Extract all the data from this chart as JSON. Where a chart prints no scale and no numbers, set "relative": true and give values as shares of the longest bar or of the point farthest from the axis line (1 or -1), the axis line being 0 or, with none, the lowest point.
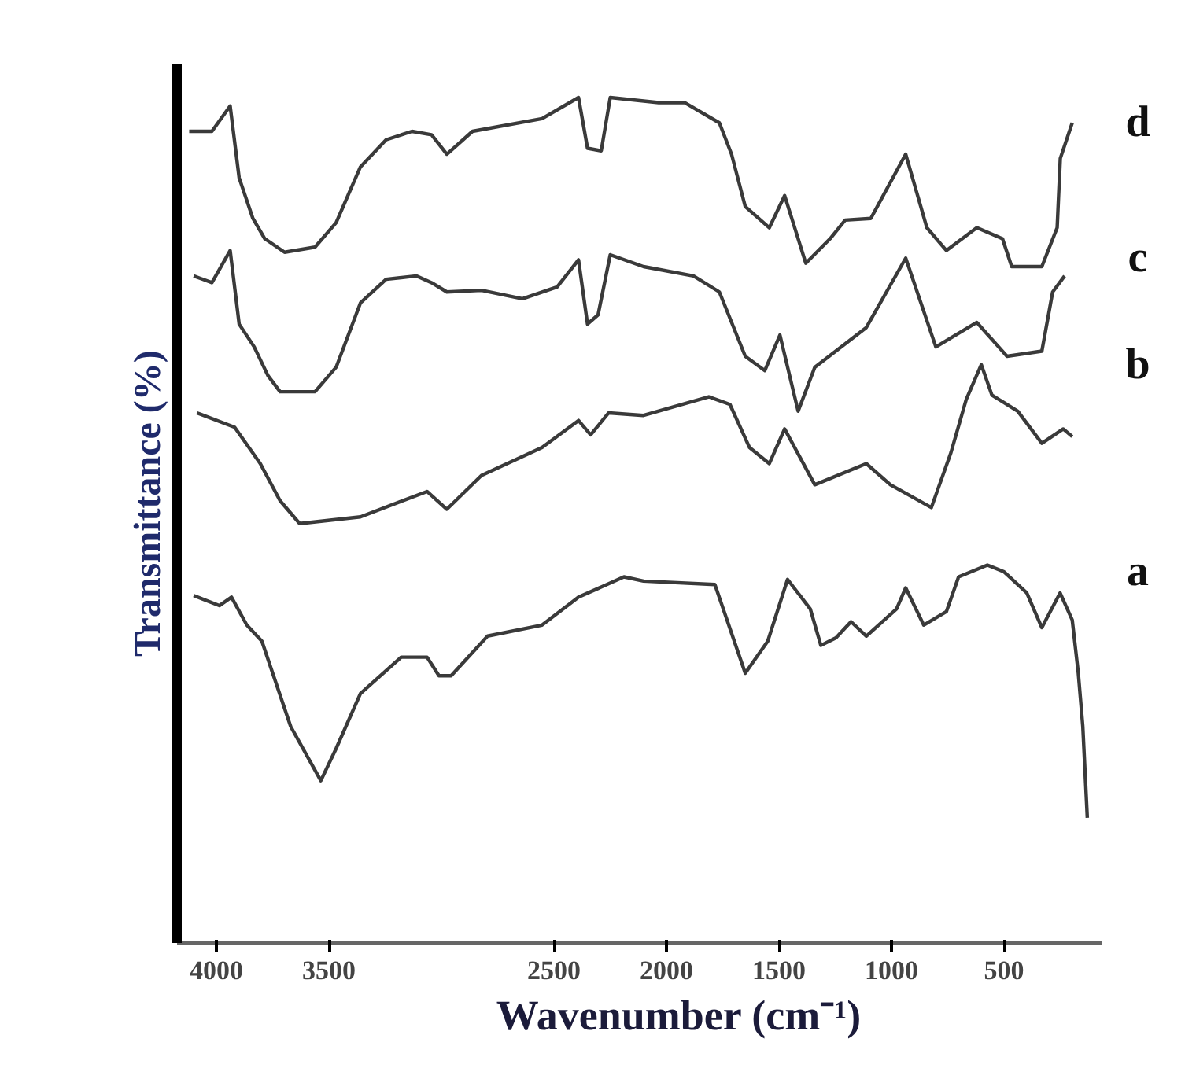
{
  "chart_data": {
    "type": "line",
    "relative": true,
    "xlabel": "Wavenumber (cm⁻¹)",
    "ylabel": "Transmittance (%)",
    "tick_labels": "x",
    "grid": false,
    "legend": false,
    "marker": "none",
    "line_style": "solid",
    "xlim": [
      4175,
      63
    ],
    "xticks": [
      4000,
      3500,
      2500,
      2000,
      1500,
      1000,
      500
    ],
    "series": [
      {
        "name": "a",
        "color": "#3a3a3a",
        "x": [
          4101,
          3987,
          3933,
          3865,
          3798,
          3670,
          3536,
          3468,
          3360,
          3179,
          3064,
          3011,
          2957,
          2795,
          2553,
          2391,
          2189,
          2102,
          1785,
          1650,
          1550,
          1462,
          1361,
          1314,
          1247,
          1180,
          1112,
          978,
          937,
          857,
          756,
          702,
          574,
          500,
          399,
          332,
          251,
          197,
          170,
          150,
          130
        ],
        "values": [
          0.411,
          0.399,
          0.409,
          0.376,
          0.357,
          0.256,
          0.192,
          0.23,
          0.295,
          0.338,
          0.338,
          0.316,
          0.316,
          0.363,
          0.376,
          0.409,
          0.433,
          0.428,
          0.424,
          0.319,
          0.357,
          0.43,
          0.395,
          0.352,
          0.361,
          0.38,
          0.363,
          0.395,
          0.42,
          0.376,
          0.392,
          0.433,
          0.447,
          0.439,
          0.414,
          0.373,
          0.414,
          0.382,
          0.319,
          0.256,
          0.148
        ]
      },
      {
        "name": "b",
        "color": "#3a3a3a",
        "x": [
          4087,
          3919,
          3805,
          3717,
          3630,
          3360,
          3064,
          2976,
          2822,
          2553,
          2391,
          2337,
          2257,
          2102,
          1812,
          1718,
          1631,
          1543,
          1475,
          1341,
          1112,
          1005,
          823,
          736,
          668,
          601,
          554,
          439,
          332,
          237,
          197
        ],
        "values": [
          0.627,
          0.61,
          0.567,
          0.523,
          0.496,
          0.504,
          0.534,
          0.513,
          0.553,
          0.586,
          0.618,
          0.601,
          0.627,
          0.624,
          0.646,
          0.637,
          0.586,
          0.567,
          0.608,
          0.542,
          0.567,
          0.542,
          0.515,
          0.58,
          0.643,
          0.684,
          0.648,
          0.629,
          0.591,
          0.608,
          0.599
        ]
      },
      {
        "name": "c",
        "color": "#3a3a3a",
        "x": [
          4101,
          4020,
          3939,
          3899,
          3832,
          3771,
          3717,
          3562,
          3468,
          3360,
          3246,
          3112,
          3044,
          2976,
          2822,
          2640,
          2486,
          2391,
          2351,
          2304,
          2250,
          2102,
          1880,
          1765,
          1650,
          1563,
          1496,
          1415,
          1341,
          1112,
          937,
          803,
          621,
          487,
          332,
          284,
          231
        ],
        "values": [
          0.789,
          0.781,
          0.819,
          0.732,
          0.705,
          0.671,
          0.652,
          0.652,
          0.681,
          0.757,
          0.785,
          0.789,
          0.781,
          0.77,
          0.772,
          0.762,
          0.776,
          0.808,
          0.732,
          0.743,
          0.814,
          0.8,
          0.789,
          0.77,
          0.694,
          0.677,
          0.719,
          0.629,
          0.681,
          0.728,
          0.81,
          0.705,
          0.734,
          0.694,
          0.7,
          0.77,
          0.789
        ]
      },
      {
        "name": "d",
        "color": "#3a3a3a",
        "x": [
          4121,
          4020,
          3939,
          3899,
          3838,
          3785,
          3697,
          3562,
          3468,
          3360,
          3246,
          3131,
          3044,
          2976,
          2862,
          2553,
          2391,
          2351,
          2290,
          2250,
          2035,
          1920,
          1765,
          1711,
          1650,
          1543,
          1475,
          1381,
          1273,
          1206,
          1092,
          937,
          843,
          756,
          621,
          507,
          466,
          332,
          264,
          250,
          197
        ],
        "values": [
          0.96,
          0.96,
          0.99,
          0.905,
          0.857,
          0.833,
          0.817,
          0.823,
          0.852,
          0.918,
          0.95,
          0.96,
          0.956,
          0.933,
          0.96,
          0.975,
          1.0,
          0.94,
          0.937,
          1.0,
          0.994,
          0.994,
          0.97,
          0.933,
          0.871,
          0.846,
          0.884,
          0.804,
          0.833,
          0.855,
          0.857,
          0.933,
          0.846,
          0.819,
          0.846,
          0.833,
          0.8,
          0.8,
          0.846,
          0.928,
          0.97
        ]
      }
    ]
  }
}
